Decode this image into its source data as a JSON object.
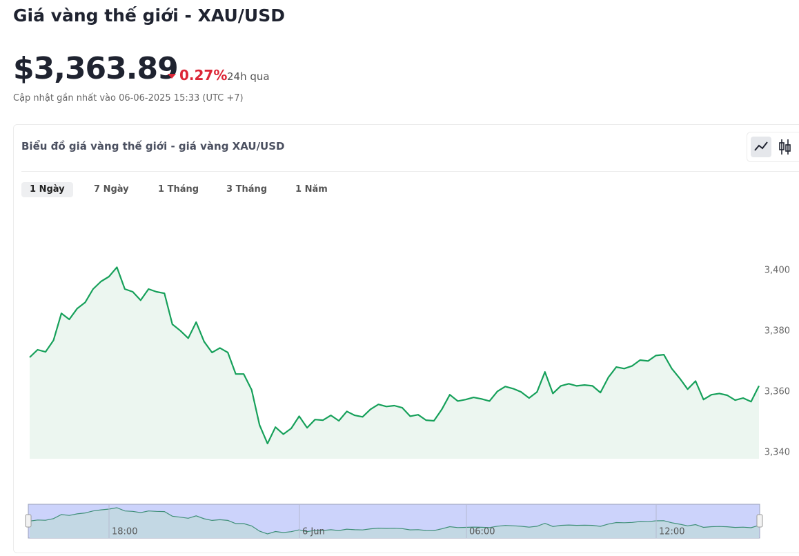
{
  "header": {
    "title": "Giá vàng thế giới - XAU/USD"
  },
  "price": {
    "value": "$3,363.89",
    "change": "0.27%",
    "period": "24h qua",
    "updated": "Cập nhật gần nhất vào 06-06-2025 15:33 (UTC +7)"
  },
  "card": {
    "title": "Biểu đồ giá vàng thế giới - giá vàng XAU/USD",
    "tabs": [
      "1 Ngày",
      "7 Ngày",
      "1 Tháng",
      "3 Tháng",
      "1 Năm"
    ],
    "selected_tab": 0
  },
  "chart_data": {
    "type": "line",
    "color": "#16a05a",
    "area": true,
    "grid": false,
    "values": [
      3371.4,
      3373.9,
      3373.2,
      3377.0,
      3385.9,
      3383.9,
      3387.5,
      3389.5,
      3393.9,
      3396.4,
      3398.0,
      3401.1,
      3393.9,
      3393.0,
      3390.2,
      3393.9,
      3393.0,
      3392.5,
      3382.3,
      3380.2,
      3377.7,
      3383.0,
      3376.6,
      3373.0,
      3374.5,
      3373.0,
      3365.9,
      3365.9,
      3360.7,
      3349.1,
      3343.0,
      3348.4,
      3346.1,
      3348.0,
      3352.0,
      3348.2,
      3350.9,
      3350.7,
      3352.3,
      3350.5,
      3353.6,
      3352.3,
      3351.8,
      3354.3,
      3355.9,
      3355.2,
      3355.5,
      3354.8,
      3352.0,
      3352.5,
      3350.7,
      3350.5,
      3354.3,
      3359.1,
      3357.0,
      3357.5,
      3358.2,
      3357.7,
      3357.0,
      3360.2,
      3361.8,
      3361.1,
      3360.0,
      3358.0,
      3360.0,
      3366.6,
      3359.5,
      3362.0,
      3362.7,
      3362.0,
      3362.3,
      3362.0,
      3359.8,
      3364.8,
      3368.2,
      3367.7,
      3368.6,
      3370.5,
      3370.2,
      3372.0,
      3372.3,
      3367.7,
      3364.5,
      3360.9,
      3363.6,
      3357.5,
      3359.1,
      3359.5,
      3358.9,
      3357.3,
      3358.0,
      3356.8,
      3362.0
    ],
    "ylim": [
      3338,
      3422
    ],
    "yticks": [
      {
        "value": 3340,
        "label": "3,340"
      },
      {
        "value": 3360,
        "label": "3,360"
      },
      {
        "value": 3380,
        "label": "3,380"
      },
      {
        "value": 3400,
        "label": "3,400"
      }
    ],
    "navigator": {
      "xticks": [
        "18:00",
        "6 Jun",
        "06:00",
        "12:00"
      ]
    }
  }
}
